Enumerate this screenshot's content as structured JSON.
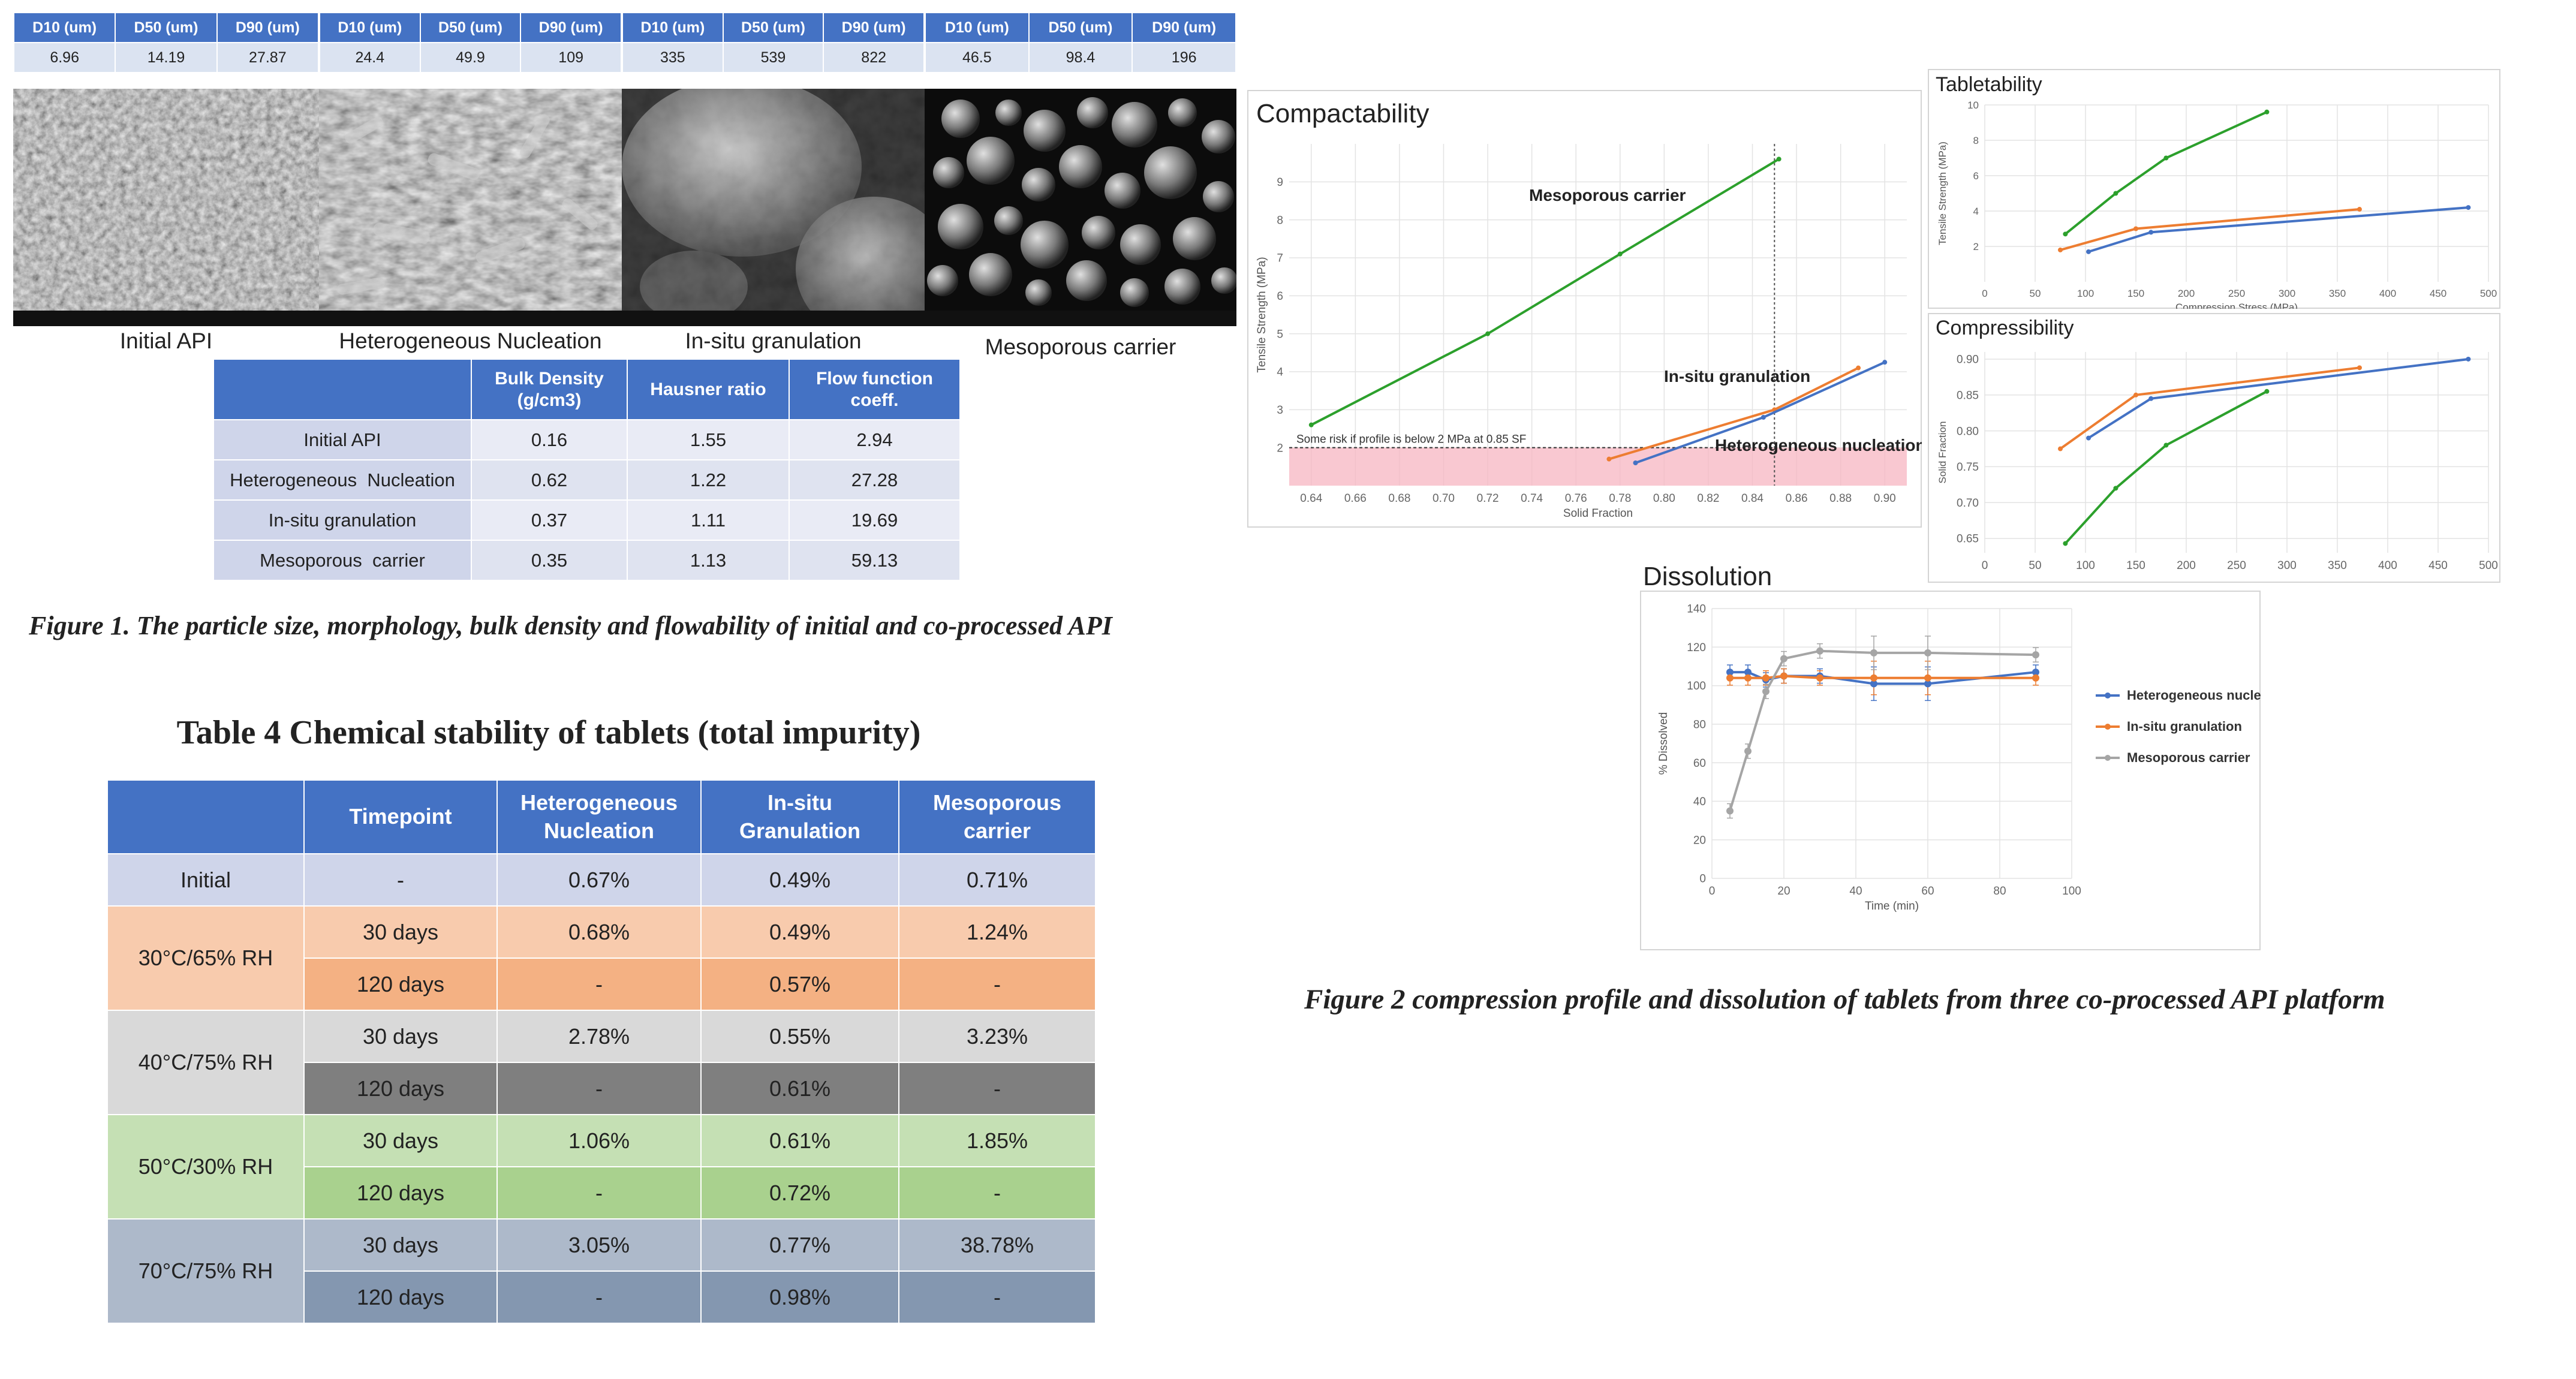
{
  "psd_header": [
    "D10 (um)",
    "D50 (um)",
    "D90 (um)"
  ],
  "psd_panels": [
    {
      "label": "Initial API",
      "d10": "6.96",
      "d50": "14.19",
      "d90": "27.87"
    },
    {
      "label": "Heterogeneous Nucleation",
      "d10": "24.4",
      "d50": "49.9",
      "d90": "109"
    },
    {
      "label": "In-situ granulation",
      "d10": "335",
      "d50": "539",
      "d90": "822"
    },
    {
      "label": "Mesoporous carrier",
      "d10": "46.5",
      "d50": "98.4",
      "d90": "196"
    }
  ],
  "table1": {
    "headers": [
      "",
      "Bulk Density\n(g/cm3)",
      "Hausner ratio",
      "Flow function\ncoeff."
    ],
    "rows": [
      [
        "Initial API",
        "0.16",
        "1.55",
        "2.94"
      ],
      [
        "Heterogeneous  Nucleation",
        "0.62",
        "1.22",
        "27.28"
      ],
      [
        "In-situ granulation",
        "0.37",
        "1.11",
        "19.69"
      ],
      [
        "Mesoporous  carrier",
        "0.35",
        "1.13",
        "59.13"
      ]
    ]
  },
  "figure1_caption": "Figure 1. The particle size, morphology, bulk density and flowability of initial and co-processed API",
  "table4": {
    "title": "Table 4 Chemical stability of tablets (total impurity)",
    "headers": [
      "",
      "Timepoint",
      "Heterogeneous\nNucleation",
      "In-situ\nGranulation",
      "Mesoporous\ncarrier"
    ],
    "groups": [
      {
        "condition": "Initial",
        "colors": [
          "#cfd5ea",
          "#cfd5ea"
        ],
        "rows": [
          [
            "-",
            "0.67%",
            "0.49%",
            "0.71%"
          ]
        ]
      },
      {
        "condition": "30°C/65% RH",
        "colors": [
          "#f8cbad",
          "#f4b183"
        ],
        "rows": [
          [
            "30 days",
            "0.68%",
            "0.49%",
            "1.24%"
          ],
          [
            "120 days",
            "-",
            "0.57%",
            "-"
          ]
        ]
      },
      {
        "condition": "40°C/75% RH",
        "colors": [
          "#d9d9d9",
          "#7f7f7f"
        ],
        "rows": [
          [
            "30 days",
            "2.78%",
            "0.55%",
            "3.23%"
          ],
          [
            "120 days",
            "-",
            "0.61%",
            "-"
          ]
        ]
      },
      {
        "condition": "50°C/30% RH",
        "colors": [
          "#c5e0b4",
          "#a9d18e"
        ],
        "rows": [
          [
            "30 days",
            "1.06%",
            "0.61%",
            "1.85%"
          ],
          [
            "120 days",
            "-",
            "0.72%",
            "-"
          ]
        ]
      },
      {
        "condition": "70°C/75% RH",
        "colors": [
          "#adb9ca",
          "#8497b0"
        ],
        "rows": [
          [
            "30 days",
            "3.05%",
            "0.77%",
            "38.78%"
          ],
          [
            "120 days",
            "-",
            "0.98%",
            "-"
          ]
        ]
      }
    ]
  },
  "figure2_caption": "Figure 2 compression profile and dissolution of tablets from three co-processed API platform",
  "colors": {
    "heterogeneous": "#4472c4",
    "insitu": "#ed7d31",
    "mesoporous": "#2ca02c",
    "dissolution_meso": "#a5a5a5"
  },
  "chart_data": [
    {
      "type": "line",
      "title": "Compactability",
      "xlabel": "Solid Fraction",
      "ylabel": "Tensile Strength (MPa)",
      "xlim": [
        0.63,
        0.91
      ],
      "ylim": [
        1,
        10
      ],
      "xticks": [
        "0.64",
        "0.66",
        "0.68",
        "0.70",
        "0.72",
        "0.74",
        "0.76",
        "0.78",
        "0.80",
        "0.82",
        "0.84",
        "0.86",
        "0.88",
        "0.90"
      ],
      "yticks": [
        "2",
        "3",
        "4",
        "5",
        "6",
        "7",
        "8",
        "9"
      ],
      "series": [
        {
          "name": "Mesoporous carrier",
          "x": [
            0.64,
            0.72,
            0.78,
            0.852
          ],
          "y": [
            2.6,
            5.0,
            7.1,
            9.6
          ]
        },
        {
          "name": "In-situ granulation",
          "x": [
            0.775,
            0.85,
            0.888
          ],
          "y": [
            1.7,
            3.0,
            4.1
          ]
        },
        {
          "name": "Heterogeneous nucleation",
          "x": [
            0.787,
            0.845,
            0.9
          ],
          "y": [
            1.6,
            2.8,
            4.25
          ]
        }
      ],
      "annotations": [
        "Some risk if profile is below 2 MPa at 0.85 SF"
      ],
      "grid": true
    },
    {
      "type": "line",
      "title": "Tabletability",
      "xlabel": "Compression Stress (MPa)",
      "ylabel": "Tensile Strength (MPa)",
      "xlim": [
        0,
        500
      ],
      "ylim": [
        0,
        10
      ],
      "xticks": [
        "0",
        "50",
        "100",
        "150",
        "200",
        "250",
        "300",
        "350",
        "400",
        "450",
        "500"
      ],
      "yticks": [
        "2",
        "4",
        "6",
        "8",
        "10"
      ],
      "series": [
        {
          "name": "Heterogeneous nucleation",
          "x": [
            103,
            165,
            480
          ],
          "y": [
            1.7,
            2.8,
            4.2
          ]
        },
        {
          "name": "In-situ granulation",
          "x": [
            75,
            150,
            372
          ],
          "y": [
            1.8,
            3.0,
            4.1
          ]
        },
        {
          "name": "Mesoporous carrier",
          "x": [
            80,
            130,
            180,
            280
          ],
          "y": [
            2.7,
            5.0,
            7.0,
            9.6
          ]
        }
      ],
      "grid": true
    },
    {
      "type": "line",
      "title": "Compressibility",
      "xlabel": "",
      "ylabel": "Solid Fraction",
      "xlim": [
        0,
        500
      ],
      "ylim": [
        0.63,
        0.91
      ],
      "xticks": [
        "0",
        "50",
        "100",
        "150",
        "200",
        "250",
        "300",
        "350",
        "400",
        "450",
        "500"
      ],
      "yticks": [
        "0.65",
        "0.70",
        "0.75",
        "0.80",
        "0.85",
        "0.90"
      ],
      "series": [
        {
          "name": "Heterogeneous nucleation",
          "x": [
            103,
            165,
            480
          ],
          "y": [
            0.79,
            0.845,
            0.9
          ]
        },
        {
          "name": "In-situ granulation",
          "x": [
            75,
            150,
            372
          ],
          "y": [
            0.775,
            0.85,
            0.888
          ]
        },
        {
          "name": "Mesoporous carrier",
          "x": [
            80,
            130,
            180,
            280
          ],
          "y": [
            0.643,
            0.72,
            0.78,
            0.855
          ]
        }
      ],
      "grid": true
    },
    {
      "type": "line",
      "title": "Dissolution",
      "xlabel": "Time (min)",
      "ylabel": "% Dissolved",
      "xlim": [
        0,
        100
      ],
      "ylim": [
        0,
        140
      ],
      "xticks": [
        "0",
        "20",
        "40",
        "60",
        "80",
        "100"
      ],
      "yticks": [
        "0",
        "20",
        "40",
        "60",
        "80",
        "100",
        "120",
        "140"
      ],
      "series": [
        {
          "name": "Heterogeneous nucleation",
          "x": [
            5,
            10,
            15,
            20,
            30,
            45,
            60,
            90
          ],
          "y": [
            107,
            107,
            103,
            105,
            105,
            101,
            101,
            107
          ]
        },
        {
          "name": "In-situ granulation",
          "x": [
            5,
            10,
            15,
            20,
            30,
            45,
            60,
            90
          ],
          "y": [
            104,
            104,
            104,
            105,
            104,
            104,
            104,
            104
          ]
        },
        {
          "name": "Mesoporous carrier",
          "x": [
            5,
            10,
            15,
            20,
            30,
            45,
            60,
            90
          ],
          "y": [
            35,
            66,
            97,
            114,
            118,
            117,
            117,
            116
          ]
        }
      ],
      "legend": [
        "Heterogeneous nucleation",
        "In-situ granulation",
        "Mesoporous carrier"
      ],
      "legend_position": "right",
      "grid": true
    }
  ]
}
